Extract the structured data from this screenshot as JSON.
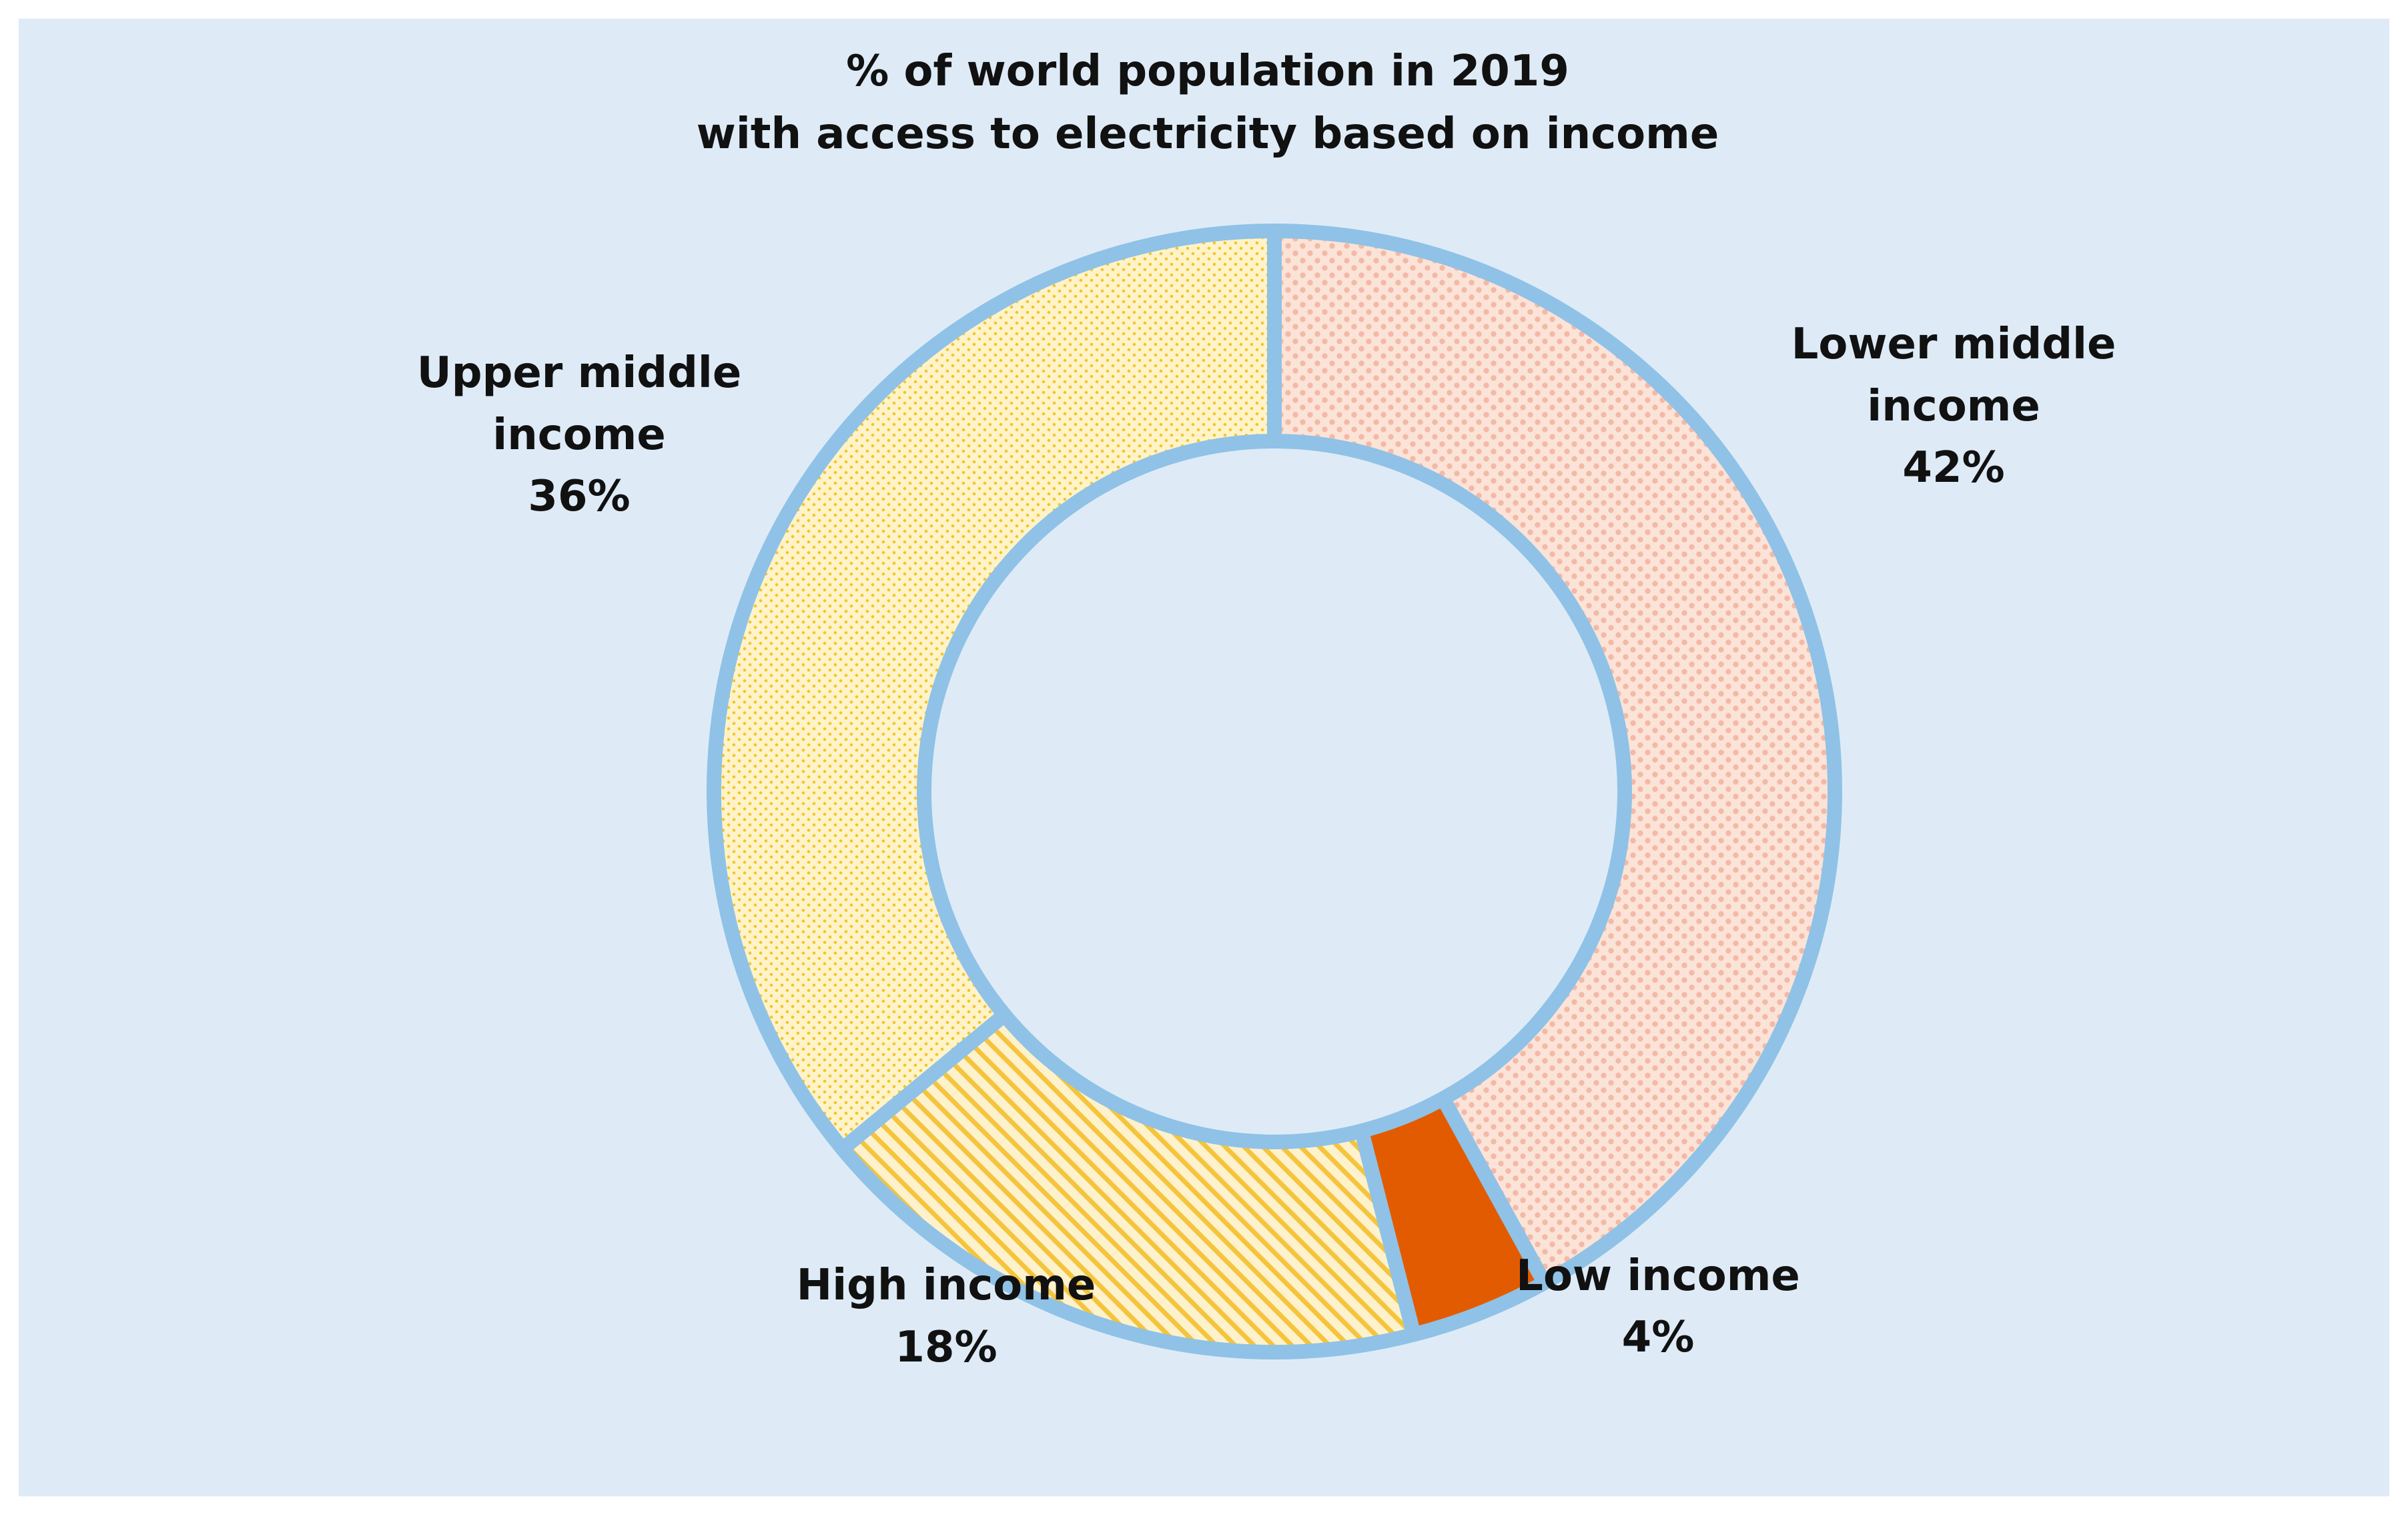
{
  "chart_data": {
    "type": "pie",
    "style": "donut",
    "title_lines": [
      "% of world population in 2019",
      "with access to electricity based on income"
    ],
    "slices": [
      {
        "name": "Lower middle income",
        "label_lines": [
          "Lower middle",
          "income"
        ],
        "value_label": "42%",
        "value": 42,
        "fill": "#fbe3d8",
        "dot_color": "#f4b9a6",
        "pattern": "diamond-dots"
      },
      {
        "name": "Low income",
        "label_lines": [
          "Low income"
        ],
        "value_label": "4%",
        "value": 4,
        "fill": "#e35b00",
        "pattern": "solid"
      },
      {
        "name": "High income",
        "label_lines": [
          "High income"
        ],
        "value_label": "18%",
        "value": 18,
        "fill": "#fdf2cc",
        "dot_color": "#f5c43c",
        "pattern": "diagonal-stripes"
      },
      {
        "name": "Upper middle income",
        "label_lines": [
          "Upper middle",
          "income"
        ],
        "value_label": "36%",
        "value": 36,
        "fill": "#fff3c7",
        "dot_color": "#f2c530",
        "pattern": "dots"
      }
    ],
    "start_angle_deg": 0,
    "direction": "clockwise",
    "border_color": "#8fc2e6",
    "background": "#deebf7"
  }
}
